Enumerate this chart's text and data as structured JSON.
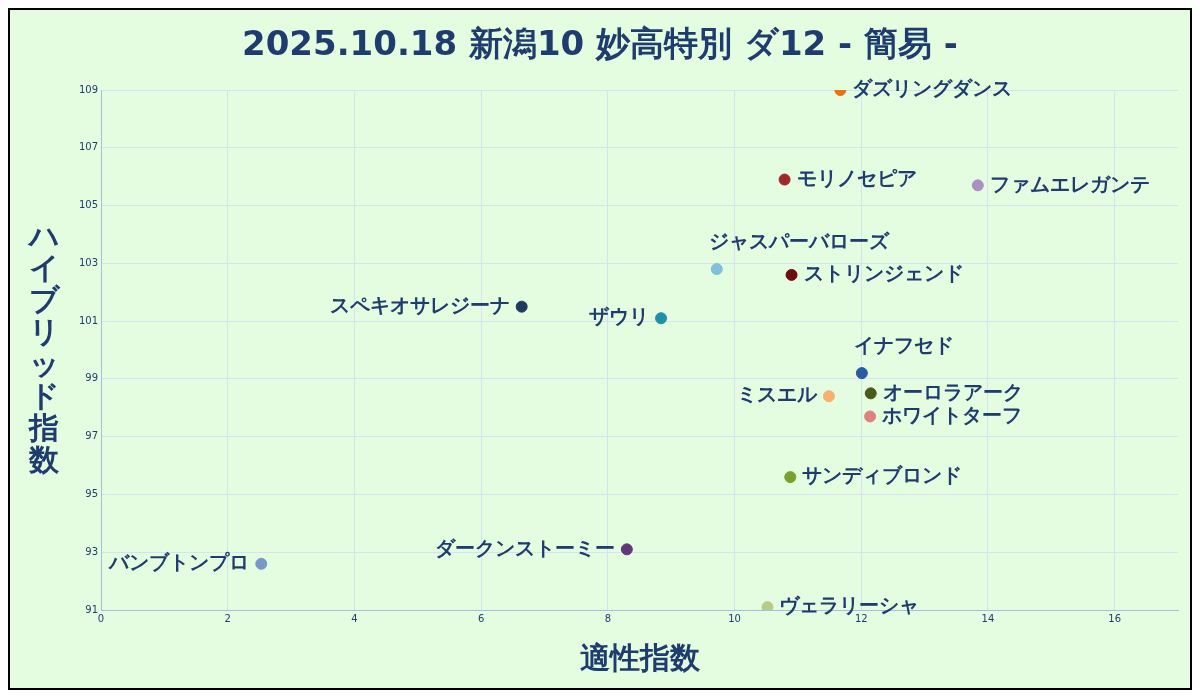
{
  "chart_data": {
    "type": "scatter",
    "title": "2025.10.18 新潟10 妙高特別 ダ12 - 簡易 -",
    "xlabel": "適性指数",
    "ylabel": "ハイブリッド指数",
    "xlim": [
      0,
      17
    ],
    "ylim": [
      91,
      109
    ],
    "xticks": [
      0,
      2,
      4,
      6,
      8,
      10,
      12,
      14,
      16
    ],
    "yticks": [
      91,
      93,
      95,
      97,
      99,
      101,
      103,
      105,
      107,
      109
    ],
    "grid": true,
    "marker": "circle",
    "series": [
      {
        "name": "ダズリングダンス",
        "color": "#f07010",
        "x": [
          11.67
        ],
        "values": [
          109.0
        ]
      },
      {
        "name": "モリノセピア",
        "color": "#a02828",
        "x": [
          10.79
        ],
        "values": [
          105.9
        ]
      },
      {
        "name": "ファムエレガンテ",
        "color": "#a890c0",
        "x": [
          13.84
        ],
        "values": [
          105.7
        ]
      },
      {
        "name": "ジャスパーバローズ",
        "color": "#80c0d8",
        "x": [
          9.72
        ],
        "values": [
          102.8
        ]
      },
      {
        "name": "ストリンジェンド",
        "color": "#6a1010",
        "x": [
          10.9
        ],
        "values": [
          102.6
        ]
      },
      {
        "name": "スペキオサレジーナ",
        "color": "#1f3a5a",
        "x": [
          6.64
        ],
        "values": [
          101.5
        ]
      },
      {
        "name": "ザウリ",
        "color": "#2090a8",
        "x": [
          8.84
        ],
        "values": [
          101.1
        ]
      },
      {
        "name": "イナフセド",
        "color": "#2a5aa0",
        "x": [
          12.01
        ],
        "values": [
          99.2
        ]
      },
      {
        "name": "オーロラアーク",
        "color": "#4a5a18",
        "x": [
          12.15
        ],
        "values": [
          98.5
        ]
      },
      {
        "name": "ミスエル",
        "color": "#f8b070",
        "x": [
          11.49
        ],
        "values": [
          98.4
        ]
      },
      {
        "name": "ホワイトターフ",
        "color": "#e08080",
        "x": [
          12.14
        ],
        "values": [
          97.7
        ]
      },
      {
        "name": "サンディブロンド",
        "color": "#78a030",
        "x": [
          10.88
        ],
        "values": [
          95.6
        ]
      },
      {
        "name": "ダークンストーミー",
        "color": "#603878",
        "x": [
          8.3
        ],
        "values": [
          93.1
        ]
      },
      {
        "name": "バンブトンプロ",
        "color": "#7898c8",
        "x": [
          2.53
        ],
        "values": [
          92.6
        ]
      },
      {
        "name": "ヴェラリーシャ",
        "color": "#b8cc88",
        "x": [
          10.52
        ],
        "values": [
          91.1
        ]
      }
    ]
  }
}
